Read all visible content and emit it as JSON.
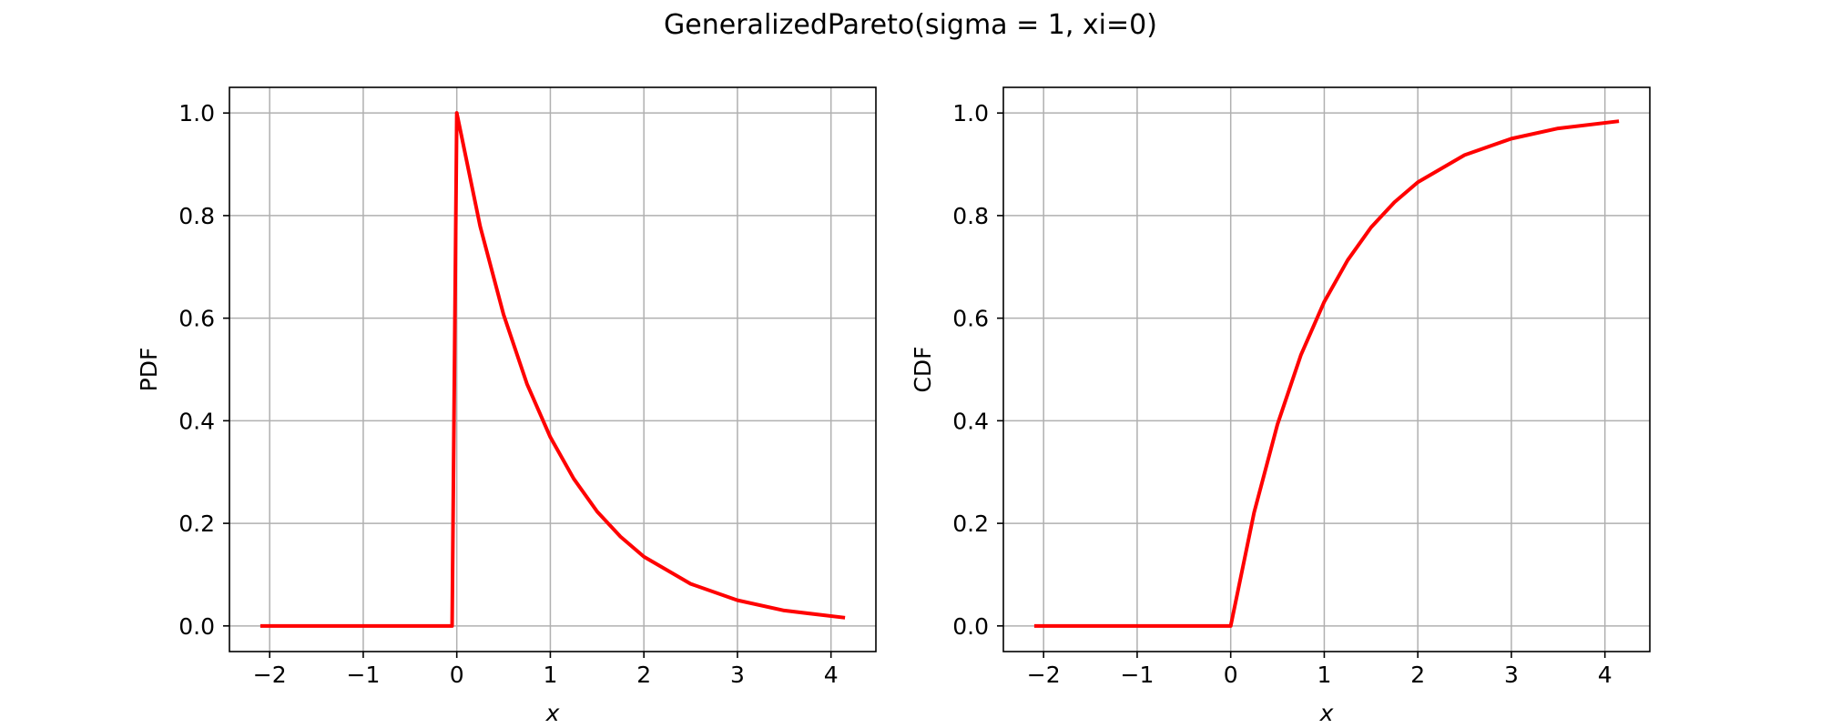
{
  "title": "GeneralizedPareto(sigma = 1, xi=0)",
  "chart_data": [
    {
      "type": "line",
      "xlabel": "x",
      "ylabel": "PDF",
      "xlim": [
        -2.43,
        4.48
      ],
      "ylim": [
        -0.05,
        1.05
      ],
      "xticks": [
        -2,
        -1,
        0,
        1,
        2,
        3,
        4
      ],
      "xtick_labels": [
        "−2",
        "−1",
        "0",
        "1",
        "2",
        "3",
        "4"
      ],
      "yticks": [
        0.0,
        0.2,
        0.4,
        0.6,
        0.8,
        1.0
      ],
      "ytick_labels": [
        "0.0",
        "0.2",
        "0.4",
        "0.6",
        "0.8",
        "1.0"
      ],
      "grid": true,
      "series": [
        {
          "color": "#ff0000",
          "x": [
            -2.1,
            -0.05,
            0.0,
            0.25,
            0.5,
            0.75,
            1.0,
            1.25,
            1.5,
            1.75,
            2.0,
            2.5,
            3.0,
            3.5,
            4.15
          ],
          "y": [
            0.0,
            0.0,
            1.0,
            0.779,
            0.607,
            0.472,
            0.368,
            0.287,
            0.223,
            0.174,
            0.135,
            0.082,
            0.05,
            0.03,
            0.016
          ]
        }
      ]
    },
    {
      "type": "line",
      "xlabel": "x",
      "ylabel": "CDF",
      "xlim": [
        -2.43,
        4.48
      ],
      "ylim": [
        -0.05,
        1.05
      ],
      "xticks": [
        -2,
        -1,
        0,
        1,
        2,
        3,
        4
      ],
      "xtick_labels": [
        "−2",
        "−1",
        "0",
        "1",
        "2",
        "3",
        "4"
      ],
      "yticks": [
        0.0,
        0.2,
        0.4,
        0.6,
        0.8,
        1.0
      ],
      "ytick_labels": [
        "0.0",
        "0.2",
        "0.4",
        "0.6",
        "0.8",
        "1.0"
      ],
      "grid": true,
      "series": [
        {
          "color": "#ff0000",
          "x": [
            -2.1,
            -0.05,
            0.0,
            0.25,
            0.5,
            0.75,
            1.0,
            1.25,
            1.5,
            1.75,
            2.0,
            2.5,
            3.0,
            3.5,
            4.15
          ],
          "y": [
            0.0,
            0.0,
            0.0,
            0.221,
            0.393,
            0.528,
            0.632,
            0.713,
            0.777,
            0.826,
            0.865,
            0.918,
            0.95,
            0.97,
            0.984
          ]
        }
      ]
    }
  ]
}
